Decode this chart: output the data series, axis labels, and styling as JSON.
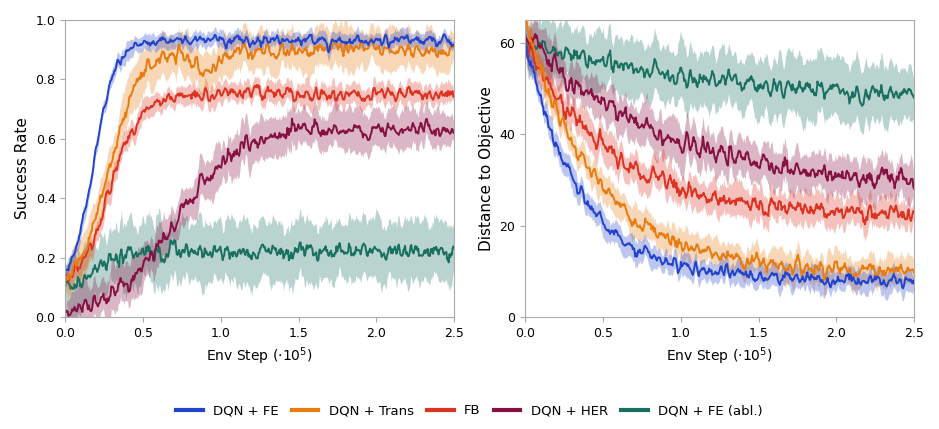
{
  "subplot1": {
    "ylabel": "Success Rate",
    "ylim": [
      0,
      1.0
    ],
    "xlim": [
      0,
      2.5
    ],
    "yticks": [
      0,
      0.2,
      0.4,
      0.6,
      0.8,
      1.0
    ],
    "xticks": [
      0,
      0.5,
      1.0,
      1.5,
      2.0,
      2.5
    ]
  },
  "subplot2": {
    "ylabel": "Distance to Objective",
    "ylim": [
      0,
      65
    ],
    "xlim": [
      0,
      2.5
    ],
    "yticks": [
      0,
      20,
      40,
      60
    ],
    "xticks": [
      0,
      0.5,
      1.0,
      1.5,
      2.0,
      2.5
    ]
  },
  "lines": {
    "dqn_fe": {
      "color": "#2244cc",
      "label": "DQN + FE"
    },
    "dqn_trans": {
      "color": "#e87c10",
      "label": "DQN + Trans"
    },
    "fb": {
      "color": "#dd3322",
      "label": "FB"
    },
    "dqn_her": {
      "color": "#881144",
      "label": "DQN + HER"
    },
    "dqn_fe_abl": {
      "color": "#1a7060",
      "label": "DQN + FE (abl.)"
    }
  },
  "xlabel": "Env Step ($\\cdot10^5$)"
}
